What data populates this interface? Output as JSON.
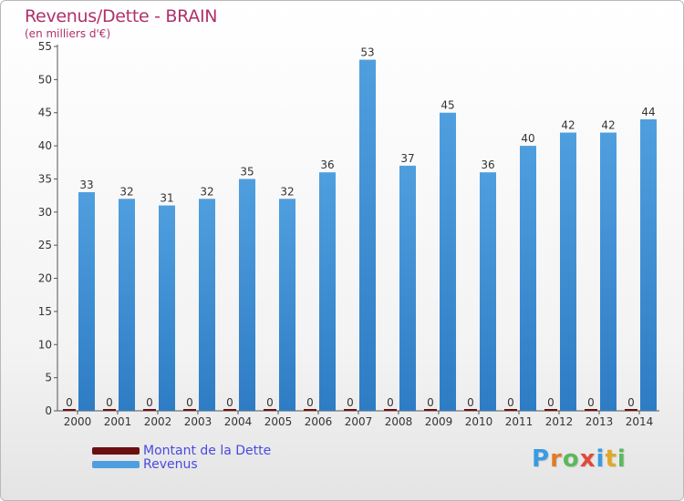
{
  "header": {
    "title": "Revenus/Dette - BRAIN",
    "subtitle": "(en milliers d'€)"
  },
  "legend": {
    "dette_label": "Montant de la Dette",
    "revenus_label": "Revenus"
  },
  "logo": {
    "letters": [
      "P",
      "r",
      "o",
      "x",
      "i",
      "t",
      "i"
    ],
    "colors": [
      "#3a9be0",
      "#e07b2a",
      "#5cb85c",
      "#e04a3a",
      "#3a9be0",
      "#e0a82a",
      "#5cb85c"
    ]
  },
  "colors": {
    "dette": "#6b0f0f",
    "revenus": "#4f9fdf",
    "revenus_dark": "#2e7cc4"
  },
  "chart_data": {
    "type": "bar",
    "title": "Revenus/Dette - BRAIN",
    "subtitle": "(en milliers d'€)",
    "categories": [
      "2000",
      "2001",
      "2002",
      "2003",
      "2004",
      "2005",
      "2006",
      "2007",
      "2008",
      "2009",
      "2010",
      "2011",
      "2012",
      "2013",
      "2014"
    ],
    "series": [
      {
        "name": "Montant de la Dette",
        "values": [
          0,
          0,
          0,
          0,
          0,
          0,
          0,
          0,
          0,
          0,
          0,
          0,
          0,
          0,
          0
        ]
      },
      {
        "name": "Revenus",
        "values": [
          33,
          32,
          31,
          32,
          35,
          32,
          36,
          53,
          37,
          45,
          36,
          40,
          42,
          42,
          44
        ]
      }
    ],
    "ylim": [
      0,
      55
    ],
    "yticks": [
      0,
      5,
      10,
      15,
      20,
      25,
      30,
      35,
      40,
      45,
      50,
      55
    ],
    "grid": false,
    "legend_position": "bottom-left"
  }
}
